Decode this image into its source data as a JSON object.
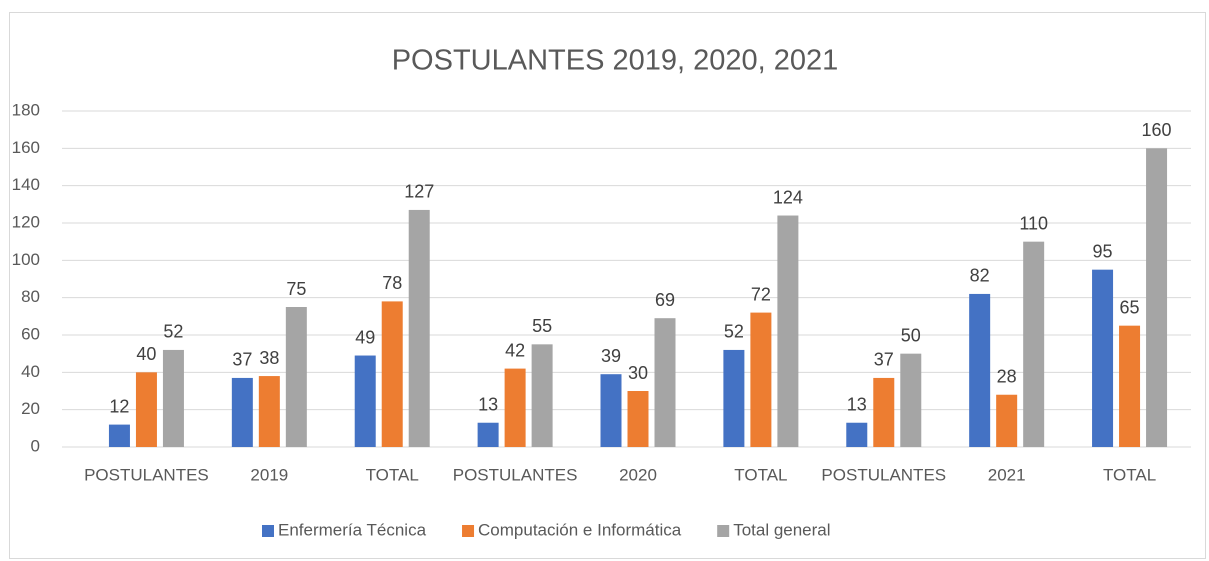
{
  "chart_data": {
    "type": "bar",
    "title": "POSTULANTES 2019, 2020, 2021",
    "categories": [
      "POSTULANTES",
      "2019",
      "TOTAL",
      "POSTULANTES",
      "2020",
      "TOTAL",
      "POSTULANTES",
      "2021",
      "TOTAL"
    ],
    "series": [
      {
        "name": "Enfermería Técnica",
        "color": "#4472c4",
        "values": [
          12,
          37,
          49,
          13,
          39,
          52,
          13,
          82,
          95
        ]
      },
      {
        "name": "Computación e Informática",
        "color": "#ed7d31",
        "values": [
          40,
          38,
          78,
          42,
          30,
          72,
          37,
          28,
          65
        ]
      },
      {
        "name": "Total general",
        "color": "#a5a5a5",
        "values": [
          52,
          75,
          127,
          55,
          69,
          124,
          50,
          110,
          160
        ]
      }
    ],
    "ylim": [
      0,
      180
    ],
    "yticks": [
      0,
      20,
      40,
      60,
      80,
      100,
      120,
      140,
      160,
      180
    ],
    "grid": true,
    "legend": "bottom"
  }
}
